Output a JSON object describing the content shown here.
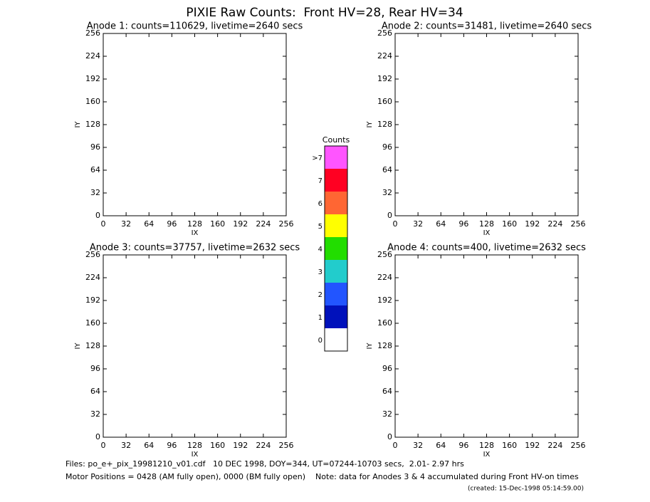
{
  "title": "PIXIE Raw Counts:  Front HV=28, Rear HV=34",
  "chart_data": [
    {
      "type": "heatmap",
      "title": "Anode 1: counts=110629, livetime=2640 secs",
      "xlabel": "IX",
      "ylabel": "IY",
      "xlim": [
        0,
        256
      ],
      "ylim": [
        0,
        256
      ],
      "xticks": [
        0,
        32,
        64,
        96,
        128,
        160,
        192,
        224,
        256
      ],
      "yticks": [
        0,
        32,
        64,
        96,
        128,
        160,
        192,
        224,
        256
      ]
    },
    {
      "type": "heatmap",
      "title": "Anode 2: counts=31481, livetime=2640 secs",
      "xlabel": "IX",
      "ylabel": "IY",
      "xlim": [
        0,
        256
      ],
      "ylim": [
        0,
        256
      ],
      "xticks": [
        0,
        32,
        64,
        96,
        128,
        160,
        192,
        224,
        256
      ],
      "yticks": [
        0,
        32,
        64,
        96,
        128,
        160,
        192,
        224,
        256
      ]
    },
    {
      "type": "heatmap",
      "title": "Anode 3: counts=37757, livetime=2632 secs",
      "xlabel": "IX",
      "ylabel": "IY",
      "xlim": [
        0,
        256
      ],
      "ylim": [
        0,
        256
      ],
      "xticks": [
        0,
        32,
        64,
        96,
        128,
        160,
        192,
        224,
        256
      ],
      "yticks": [
        0,
        32,
        64,
        96,
        128,
        160,
        192,
        224,
        256
      ]
    },
    {
      "type": "heatmap",
      "title": "Anode 4: counts=400, livetime=2632 secs",
      "xlabel": "IX",
      "ylabel": "IY",
      "xlim": [
        0,
        256
      ],
      "ylim": [
        0,
        256
      ],
      "xticks": [
        0,
        32,
        64,
        96,
        128,
        160,
        192,
        224,
        256
      ],
      "yticks": [
        0,
        32,
        64,
        96,
        128,
        160,
        192,
        224,
        256
      ]
    }
  ],
  "colorbar": {
    "title": "Counts",
    "labels": [
      ">7",
      "7",
      "6",
      "5",
      "4",
      "3",
      "2",
      "1",
      "0"
    ],
    "colors": [
      "#ff55ff",
      "#ff0022",
      "#ff6633",
      "#ffff00",
      "#22dd00",
      "#22cccc",
      "#2255ff",
      "#0011bb",
      "#ffffff"
    ]
  },
  "footer": {
    "files": "Files: po_e+_pix_19981210_v01.cdf   10 DEC 1998, DOY=344, UT=07244-10703 secs,  2.01- 2.97 hrs",
    "motor": "Motor Positions = 0428 (AM fully open), 0000 (BM fully open)    Note: data for Anodes 3 & 4 accumulated during Front HV-on times",
    "created": "(created: 15-Dec-1998 05:14:59.00)"
  }
}
